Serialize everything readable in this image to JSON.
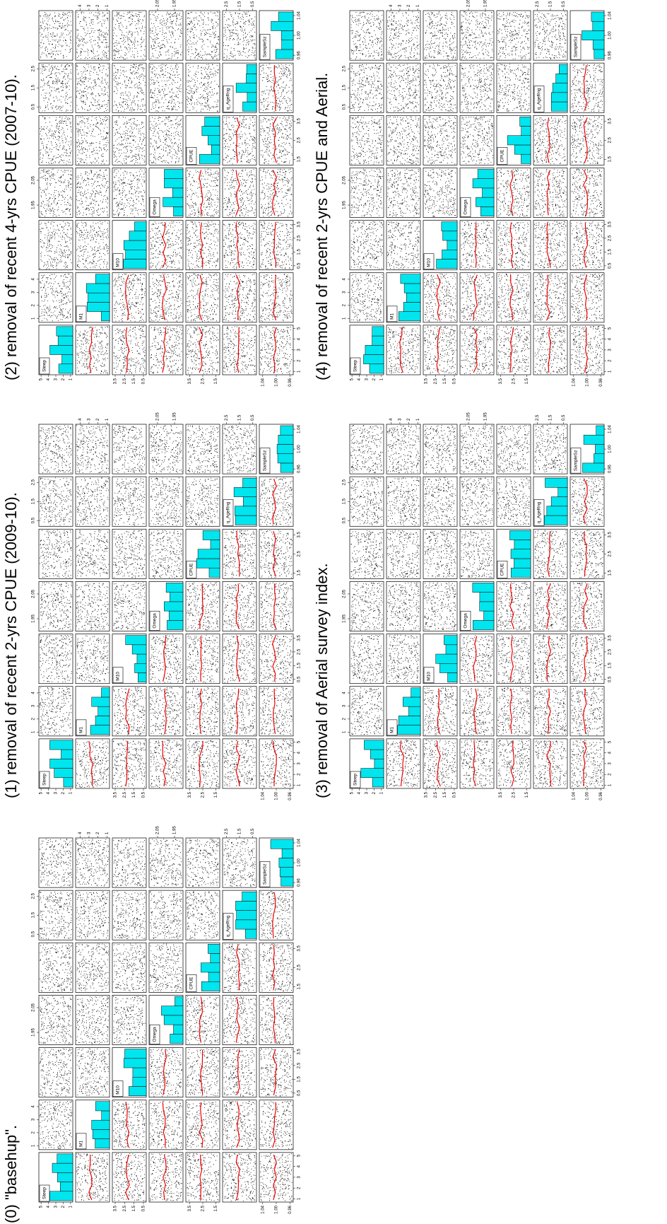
{
  "chart_data": [
    {
      "type": "scatter-matrix",
      "title": "(0) \"basehup\".",
      "variables": [
        {
          "name": "Steep",
          "lim": [
            0.7,
            5.3
          ],
          "ticks": [
            1,
            2,
            3,
            4,
            5
          ]
        },
        {
          "name": "M1",
          "lim": [
            0.7,
            4.5
          ],
          "ticks": [
            1,
            2,
            3,
            4
          ]
        },
        {
          "name": "M10",
          "lim": [
            0.2,
            3.8
          ],
          "ticks": [
            0.5,
            1.5,
            2.5,
            3.5
          ]
        },
        {
          "name": "Omega",
          "lim": [
            1.9,
            2.1
          ],
          "ticks": [
            1.95,
            2.05
          ]
        },
        {
          "name": "CPUE",
          "lim": [
            1.2,
            3.8
          ],
          "ticks": [
            1.5,
            2.5,
            3.5
          ]
        },
        {
          "name": "q_AgeRng",
          "lim": [
            0.2,
            2.8
          ],
          "ticks": [
            0.5,
            1.5,
            2.5
          ]
        },
        {
          "name": "SampleSz",
          "lim": [
            0.95,
            1.05
          ],
          "ticks": [
            0.96,
            {
              "value": 1,
              "label": "1.00"
            },
            1.04
          ]
        }
      ]
    },
    {
      "type": "scatter-matrix",
      "title": "(1) removal of recent 2-yrs CPUE (2009-10).",
      "variables": [
        {
          "name": "Steep",
          "lim": [
            0.7,
            5.3
          ],
          "ticks": [
            1,
            2,
            3,
            4,
            5
          ]
        },
        {
          "name": "M1",
          "lim": [
            0.7,
            4.5
          ],
          "ticks": [
            1,
            2,
            3,
            4
          ]
        },
        {
          "name": "M10",
          "lim": [
            0.2,
            3.8
          ],
          "ticks": [
            0.5,
            1.5,
            2.5,
            3.5
          ]
        },
        {
          "name": "Omega",
          "lim": [
            1.9,
            2.1
          ],
          "ticks": [
            1.95,
            2.05
          ]
        },
        {
          "name": "CPUE",
          "lim": [
            1.2,
            3.8
          ],
          "ticks": [
            1.5,
            2.5,
            3.5
          ]
        },
        {
          "name": "q_AgeRng",
          "lim": [
            0.2,
            2.8
          ],
          "ticks": [
            0.5,
            1.5,
            2.5
          ]
        },
        {
          "name": "SampleSz",
          "lim": [
            0.95,
            1.05
          ],
          "ticks": [
            0.96,
            {
              "value": 1,
              "label": "1.00"
            },
            1.04
          ]
        }
      ]
    },
    {
      "type": "scatter-matrix",
      "title": "(2) removal of recent 4-yrs CPUE (2007-10).",
      "variables": [
        {
          "name": "Steep",
          "lim": [
            0.7,
            5.3
          ],
          "ticks": [
            1,
            2,
            3,
            4,
            5
          ]
        },
        {
          "name": "M1",
          "lim": [
            0.7,
            4.5
          ],
          "ticks": [
            1,
            2,
            3,
            4
          ]
        },
        {
          "name": "M10",
          "lim": [
            0.2,
            3.8
          ],
          "ticks": [
            0.5,
            1.5,
            2.5,
            3.5
          ]
        },
        {
          "name": "Omega",
          "lim": [
            1.9,
            2.1
          ],
          "ticks": [
            1.95,
            2.05
          ]
        },
        {
          "name": "CPUE",
          "lim": [
            1.2,
            3.8
          ],
          "ticks": [
            1.5,
            2.5,
            3.5
          ]
        },
        {
          "name": "q_AgeRng",
          "lim": [
            0.2,
            2.8
          ],
          "ticks": [
            0.5,
            1.5,
            2.5
          ]
        },
        {
          "name": "SampleSz",
          "lim": [
            0.95,
            1.05
          ],
          "ticks": [
            0.96,
            {
              "value": 1,
              "label": "1.00"
            },
            1.04
          ]
        }
      ]
    },
    {
      "type": "scatter-matrix",
      "title": "(3) removal of Aerial survey index.",
      "variables": [
        {
          "name": "Steep",
          "lim": [
            0.7,
            5.3
          ],
          "ticks": [
            1,
            2,
            3,
            4,
            5
          ]
        },
        {
          "name": "M1",
          "lim": [
            0.7,
            4.5
          ],
          "ticks": [
            1,
            2,
            3,
            4
          ]
        },
        {
          "name": "M10",
          "lim": [
            0.2,
            3.8
          ],
          "ticks": [
            0.5,
            1.5,
            2.5,
            3.5
          ]
        },
        {
          "name": "Omega",
          "lim": [
            1.9,
            2.1
          ],
          "ticks": [
            1.95,
            2.05
          ]
        },
        {
          "name": "CPUE",
          "lim": [
            1.2,
            3.8
          ],
          "ticks": [
            1.5,
            2.5,
            3.5
          ]
        },
        {
          "name": "q_AgeRng",
          "lim": [
            0.2,
            2.8
          ],
          "ticks": [
            0.5,
            1.5,
            2.5
          ]
        },
        {
          "name": "SampleSz",
          "lim": [
            0.95,
            1.05
          ],
          "ticks": [
            0.96,
            {
              "value": 1,
              "label": "1.00"
            },
            1.04
          ]
        }
      ]
    },
    {
      "type": "scatter-matrix",
      "title": "(4) removal of recent 2-yrs CPUE and Aerial.",
      "variables": [
        {
          "name": "Steep",
          "lim": [
            0.7,
            5.3
          ],
          "ticks": [
            1,
            2,
            3,
            4,
            5
          ]
        },
        {
          "name": "M1",
          "lim": [
            0.7,
            4.5
          ],
          "ticks": [
            1,
            2,
            3,
            4
          ]
        },
        {
          "name": "M10",
          "lim": [
            0.2,
            3.8
          ],
          "ticks": [
            0.5,
            1.5,
            2.5,
            3.5
          ]
        },
        {
          "name": "Omega",
          "lim": [
            1.9,
            2.1
          ],
          "ticks": [
            1.95,
            2.05
          ]
        },
        {
          "name": "CPUE",
          "lim": [
            1.2,
            3.8
          ],
          "ticks": [
            1.5,
            2.5,
            3.5
          ]
        },
        {
          "name": "q_AgeRng",
          "lim": [
            0.2,
            2.8
          ],
          "ticks": [
            0.5,
            1.5,
            2.5
          ]
        },
        {
          "name": "SampleSz",
          "lim": [
            0.95,
            1.05
          ],
          "ticks": [
            0.96,
            {
              "value": 1,
              "label": "1.00"
            },
            1.04
          ]
        }
      ]
    }
  ]
}
